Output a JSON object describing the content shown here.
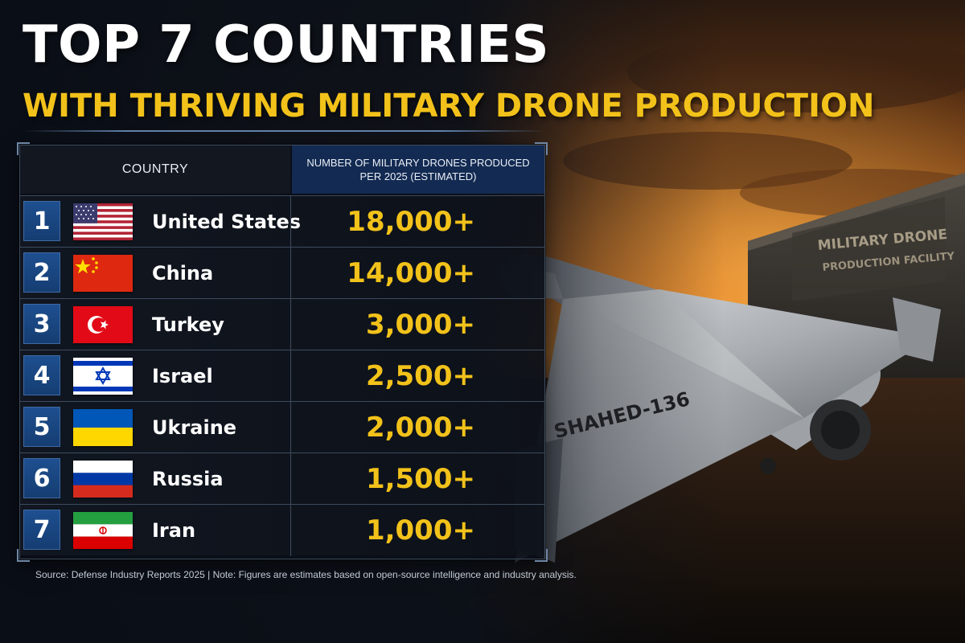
{
  "title": {
    "line1": "TOP 7 COUNTRIES",
    "line2": "WITH THRIVING MILITARY DRONE PRODUCTION"
  },
  "table": {
    "header_country": "COUNTRY",
    "header_count_line1": "NUMBER OF MILITARY DRONES PRODUCED",
    "header_count_line2": "PER 2025 (ESTIMATED)",
    "rows": [
      {
        "rank": "1",
        "country": "United States",
        "drones": "18,000+",
        "flag": "us"
      },
      {
        "rank": "2",
        "country": "China",
        "drones": "14,000+",
        "flag": "cn"
      },
      {
        "rank": "3",
        "country": "Turkey",
        "drones": "3,000+",
        "flag": "tr"
      },
      {
        "rank": "4",
        "country": "Israel",
        "drones": "2,500+",
        "flag": "il"
      },
      {
        "rank": "5",
        "country": "Ukraine",
        "drones": "2,000+",
        "flag": "ua"
      },
      {
        "rank": "6",
        "country": "Russia",
        "drones": "1,500+",
        "flag": "ru"
      },
      {
        "rank": "7",
        "country": "Iran",
        "drones": "1,000+",
        "flag": "ir"
      }
    ]
  },
  "footer": {
    "source": "Source: Defense Industry Reports 2025  |  Note: Figures are estimates based on open-source intelligence and industry analysis."
  },
  "scene": {
    "facility_line1": "MILITARY DRONE",
    "facility_line2": "PRODUCTION FACILITY",
    "drone_marking": "SHAHED-136"
  },
  "colors": {
    "accent_yellow": "#f2c21a",
    "rank_blue": "#1e4f8f",
    "header_blue": "#132a52"
  }
}
